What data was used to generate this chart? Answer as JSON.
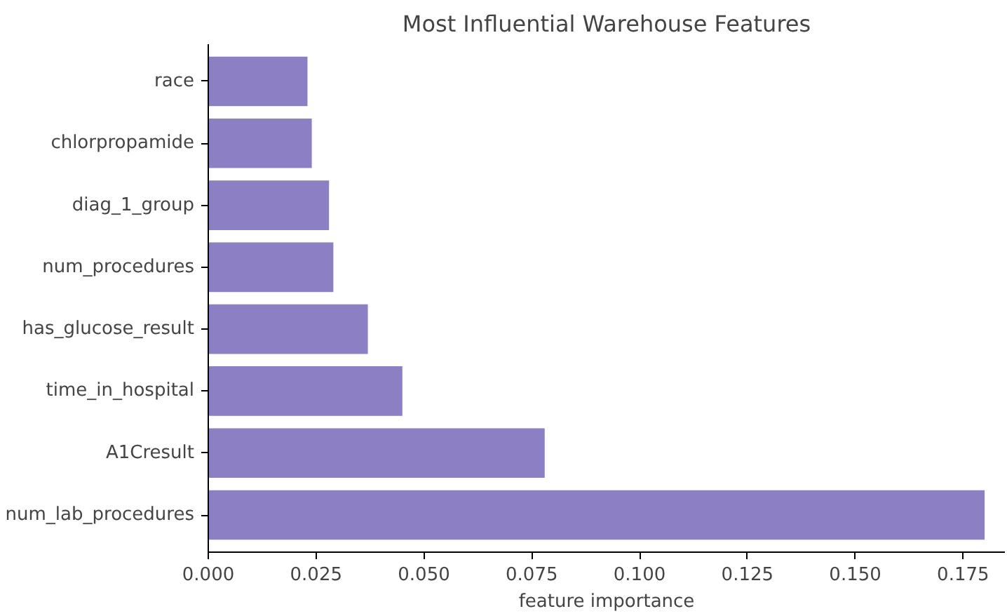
{
  "chart_data": {
    "type": "bar",
    "orientation": "horizontal",
    "title": "Most Influential Warehouse Features",
    "xlabel": "feature importance",
    "categories": [
      "race",
      "chlorpropamide",
      "diag_1_group",
      "num_procedures",
      "has_glucose_result",
      "time_in_hospital",
      "A1Cresult",
      "num_lab_procedures"
    ],
    "values": [
      0.023,
      0.024,
      0.028,
      0.029,
      0.037,
      0.045,
      0.078,
      0.18
    ],
    "color": "#8c7fc4",
    "xlim": [
      0,
      0.1847
    ],
    "xticks": [
      {
        "value": 0,
        "label": "0.000"
      },
      {
        "value": 0.025,
        "label": "0.025"
      },
      {
        "value": 0.05,
        "label": "0.050"
      },
      {
        "value": 0.075,
        "label": "0.075"
      },
      {
        "value": 0.1,
        "label": "0.100"
      },
      {
        "value": 0.125,
        "label": "0.125"
      },
      {
        "value": 0.15,
        "label": "0.150"
      },
      {
        "value": 0.175,
        "label": "0.175"
      }
    ],
    "grid": false
  }
}
